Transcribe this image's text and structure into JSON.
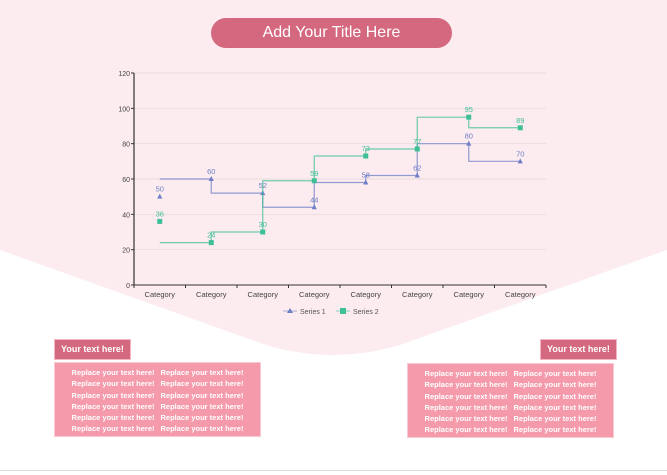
{
  "title": "Add Your Title Here",
  "chart_data": {
    "type": "line",
    "step": "end",
    "categories": [
      "Category",
      "Category",
      "Category",
      "Category",
      "Category",
      "Category",
      "Category",
      "Category"
    ],
    "series": [
      {
        "name": "Series 1",
        "values": [
          50,
          60,
          52,
          44,
          58,
          62,
          80,
          70
        ],
        "color": "#6f7fc7",
        "marker": "triangle"
      },
      {
        "name": "Series 2",
        "values": [
          36,
          24,
          30,
          59,
          73,
          77,
          95,
          89
        ],
        "color": "#3dbf97",
        "marker": "square"
      }
    ],
    "ylim": [
      0,
      120
    ],
    "yticks": [
      0,
      20,
      40,
      60,
      80,
      100,
      120
    ],
    "grid": true,
    "legend": "bottom"
  },
  "left_panel": {
    "label": "Your text here!",
    "rows": [
      [
        "Replace your text here!",
        "Replace your text here!"
      ],
      [
        "Replace your text here!",
        "Replace your text here!"
      ],
      [
        "Replace your text here!",
        "Replace your text here!"
      ],
      [
        "Replace your text here!",
        "Replace your text here!"
      ],
      [
        "Replace your text here!",
        "Replace your text here!"
      ],
      [
        "Replace your text here!",
        "Replace your text here!"
      ]
    ]
  },
  "right_panel": {
    "label": "Your text here!",
    "rows": [
      [
        "Replace your text here!",
        "Replace your text here!"
      ],
      [
        "Replace your text here!",
        "Replace your text here!"
      ],
      [
        "Replace your text here!",
        "Replace your text here!"
      ],
      [
        "Replace your text here!",
        "Replace your text here!"
      ],
      [
        "Replace your text here!",
        "Replace your text here!"
      ],
      [
        "Replace your text here!",
        "Replace your text here!"
      ]
    ]
  }
}
